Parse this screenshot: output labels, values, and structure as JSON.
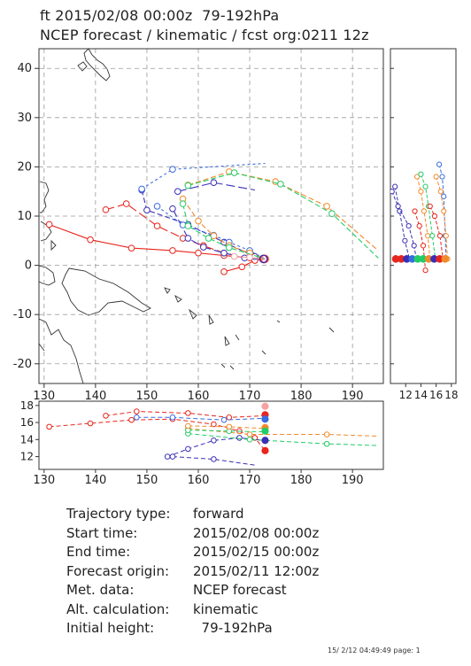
{
  "title_line1": "ft 2015/02/08 00:00z  79-192hPa",
  "title_line2": "NCEP forecast / kinematic / fcst org:0211 12z",
  "info": [
    {
      "key": "Trajectory type:",
      "value": "forward"
    },
    {
      "key": "Start time:",
      "value": "2015/02/08 00:00z"
    },
    {
      "key": "End time:",
      "value": "2015/02/15 00:00z"
    },
    {
      "key": "Forecast origin:",
      "value": "2015/02/11 12:00z"
    },
    {
      "key": "Met. data:",
      "value": "NCEP forecast"
    },
    {
      "key": "Alt. calculation:",
      "value": "kinematic"
    },
    {
      "key": "Initial height:",
      "value": "  79-192hPa"
    }
  ],
  "footer": "15/ 2/12 04:49:49 page: 1",
  "chart_data": [
    {
      "type": "line",
      "panel": "map",
      "xlim": [
        129,
        196
      ],
      "ylim": [
        -24,
        44
      ],
      "xticks": [
        130,
        140,
        150,
        160,
        170,
        180,
        190
      ],
      "yticks": [
        -20,
        -10,
        0,
        10,
        20,
        30,
        40
      ],
      "grid": true,
      "series": [
        {
          "color": "#e8251c",
          "dash": "solid",
          "points": [
            [
              131,
              8.3
            ],
            [
              139,
              5.2
            ],
            [
              147,
              3.5
            ],
            [
              155,
              3
            ],
            [
              160,
              2.5
            ],
            [
              165,
              2
            ],
            [
              170,
              1.5
            ],
            [
              173,
              1.3
            ]
          ]
        },
        {
          "color": "#e8251c",
          "dash": "solid",
          "points": [
            [
              165,
              -1.3
            ],
            [
              168.5,
              -0.3
            ],
            [
              171,
              1
            ],
            [
              173,
              1.3
            ]
          ]
        },
        {
          "color": "#e8251c",
          "dash": "longdash",
          "points": [
            [
              142,
              11.3
            ],
            [
              146,
              12.5
            ],
            [
              152,
              8
            ],
            [
              157,
              5.5
            ],
            [
              161,
              4
            ],
            [
              165,
              2.5
            ],
            [
              170,
              1.5
            ],
            [
              173,
              1.3
            ]
          ]
        },
        {
          "color": "#3a2fb5",
          "dash": "longdash",
          "points": [
            [
              156,
              15
            ],
            [
              163,
              16.8
            ],
            [
              171,
              15.3
            ]
          ]
        },
        {
          "color": "#3a2fb5",
          "dash": "longdash",
          "points": [
            [
              155,
              11.5
            ],
            [
              158,
              5.5
            ],
            [
              161,
              3.7
            ],
            [
              165,
              2.5
            ],
            [
              169,
              1.5
            ],
            [
              173,
              1.3
            ]
          ]
        },
        {
          "color": "#3a2fb5",
          "dash": "dashed",
          "points": [
            [
              149,
              15.3
            ],
            [
              150,
              11.2
            ],
            [
              158,
              8.3
            ],
            [
              165,
              4.7
            ],
            [
              171,
              1.8
            ],
            [
              173,
              1.3
            ]
          ]
        },
        {
          "color": "#3a6ce0",
          "dash": "shortdash",
          "points": [
            [
              149,
              15.5
            ],
            [
              155,
              19.5
            ],
            [
              173,
              20.7
            ]
          ]
        },
        {
          "color": "#3a6ce0",
          "dash": "shortdash",
          "points": [
            [
              152,
              12
            ],
            [
              157,
              8.2
            ],
            [
              163,
              6.1
            ],
            [
              166,
              4.7
            ],
            [
              170,
              3
            ],
            [
              173,
              1.3
            ]
          ]
        },
        {
          "color": "#f08a2a",
          "dash": "dashed",
          "points": [
            [
              158,
              16.3
            ],
            [
              166,
              19
            ],
            [
              175,
              17
            ],
            [
              185,
              12
            ],
            [
              195,
              3
            ]
          ]
        },
        {
          "color": "#f08a2a",
          "dash": "dashed",
          "points": [
            [
              157,
              13.5
            ],
            [
              160,
              9
            ],
            [
              163,
              6
            ],
            [
              166,
              4
            ],
            [
              170,
              2.5
            ],
            [
              173,
              1.3
            ]
          ]
        },
        {
          "color": "#22cc66",
          "dash": "dashed",
          "points": [
            [
              158,
              16.2
            ],
            [
              167,
              18.8
            ],
            [
              176,
              16.5
            ],
            [
              186,
              10.5
            ],
            [
              195,
              1.5
            ]
          ]
        },
        {
          "color": "#22cc66",
          "dash": "dashed",
          "points": [
            [
              157,
              12.5
            ],
            [
              158,
              8
            ],
            [
              162,
              5.5
            ],
            [
              166,
              3.6
            ],
            [
              173,
              1.3
            ]
          ]
        },
        {
          "color": "#f4a3a3",
          "dash": "solid",
          "points": [
            [
              167,
              1.8
            ],
            [
              170,
              1.6
            ],
            [
              173,
              1.3
            ]
          ]
        }
      ]
    },
    {
      "type": "line",
      "panel": "height_vs_time",
      "xticks": [
        12,
        14,
        16,
        18
      ],
      "xlim": [
        10,
        18.6
      ],
      "ylim": [
        -24,
        44
      ],
      "series": [
        {
          "color": "#3a2fb5",
          "points": [
            [
              10.6,
              16
            ],
            [
              11.2,
              11
            ],
            [
              11.9,
              5
            ],
            [
              12.5,
              1.3
            ]
          ]
        },
        {
          "color": "#3a2fb5",
          "points": [
            [
              10.2,
              15
            ],
            [
              11,
              12
            ],
            [
              12.4,
              8
            ],
            [
              13.1,
              4
            ],
            [
              13.4,
              1.3
            ]
          ]
        },
        {
          "color": "#e8251c",
          "points": [
            [
              13.2,
              11
            ],
            [
              13.8,
              8
            ],
            [
              14.3,
              4
            ],
            [
              14.6,
              -1
            ]
          ]
        },
        {
          "color": "#f08a2a",
          "points": [
            [
              13.5,
              18
            ],
            [
              14,
              15
            ],
            [
              14.4,
              11
            ],
            [
              14.9,
              6
            ],
            [
              15.2,
              1.3
            ]
          ]
        },
        {
          "color": "#22cc66",
          "points": [
            [
              14,
              18.5
            ],
            [
              14.6,
              16
            ],
            [
              15,
              12
            ],
            [
              15.5,
              6
            ],
            [
              15.9,
              1.3
            ]
          ]
        },
        {
          "color": "#3a6ce0",
          "points": [
            [
              16.4,
              20.5
            ],
            [
              16.8,
              18
            ],
            [
              17,
              14
            ],
            [
              17.2,
              6
            ],
            [
              17.3,
              1.3
            ]
          ]
        },
        {
          "color": "#e8251c",
          "points": [
            [
              15.2,
              12
            ],
            [
              15.8,
              10
            ],
            [
              16.5,
              6
            ],
            [
              16.9,
              1.3
            ]
          ]
        },
        {
          "color": "#f08a2a",
          "points": [
            [
              16,
              18
            ],
            [
              16.6,
              15
            ],
            [
              17,
              11
            ],
            [
              17.3,
              6
            ],
            [
              17.5,
              1.3
            ]
          ]
        }
      ]
    },
    {
      "type": "line",
      "panel": "lon_vs_level",
      "xlim": [
        129,
        196
      ],
      "ylim": [
        10.5,
        18.5
      ],
      "yticks": [
        12,
        14,
        16,
        18
      ],
      "series": [
        {
          "color": "#e8251c",
          "points": [
            [
              131,
              15.5
            ],
            [
              139,
              15.9
            ],
            [
              147,
              16.3
            ],
            [
              155,
              16.4
            ],
            [
              163,
              15.8
            ],
            [
              168,
              15
            ],
            [
              171,
              14.2
            ],
            [
              173,
              12.7
            ]
          ]
        },
        {
          "color": "#e8251c",
          "points": [
            [
              142,
              16.8
            ],
            [
              148,
              17.3
            ],
            [
              158,
              17.1
            ],
            [
              166,
              16.6
            ],
            [
              173,
              16.8
            ]
          ]
        },
        {
          "color": "#3a6ce0",
          "points": [
            [
              148,
              16.6
            ],
            [
              155,
              16.6
            ],
            [
              165,
              16.3
            ],
            [
              173,
              16.5
            ]
          ]
        },
        {
          "color": "#3a2fb5",
          "points": [
            [
              154,
              12
            ],
            [
              158,
              12.9
            ],
            [
              163,
              13.9
            ],
            [
              168,
              14.2
            ],
            [
              173,
              13.9
            ]
          ]
        },
        {
          "color": "#3a2fb5",
          "points": [
            [
              155,
              12
            ],
            [
              163,
              11.7
            ],
            [
              171,
              11
            ]
          ]
        },
        {
          "color": "#f08a2a",
          "points": [
            [
              158,
              15.3
            ],
            [
              170,
              14.6
            ],
            [
              185,
              14.6
            ],
            [
              195,
              14.4
            ]
          ]
        },
        {
          "color": "#22cc66",
          "points": [
            [
              158,
              14.7
            ],
            [
              170,
              14
            ],
            [
              185,
              13.5
            ],
            [
              195,
              13.3
            ]
          ]
        },
        {
          "color": "#22cc66",
          "points": [
            [
              158,
              15.1
            ],
            [
              166,
              15
            ],
            [
              173,
              14.9
            ]
          ]
        },
        {
          "color": "#f08a2a",
          "points": [
            [
              158,
              15.6
            ],
            [
              166,
              15.5
            ],
            [
              173,
              15.3
            ]
          ]
        }
      ]
    }
  ]
}
